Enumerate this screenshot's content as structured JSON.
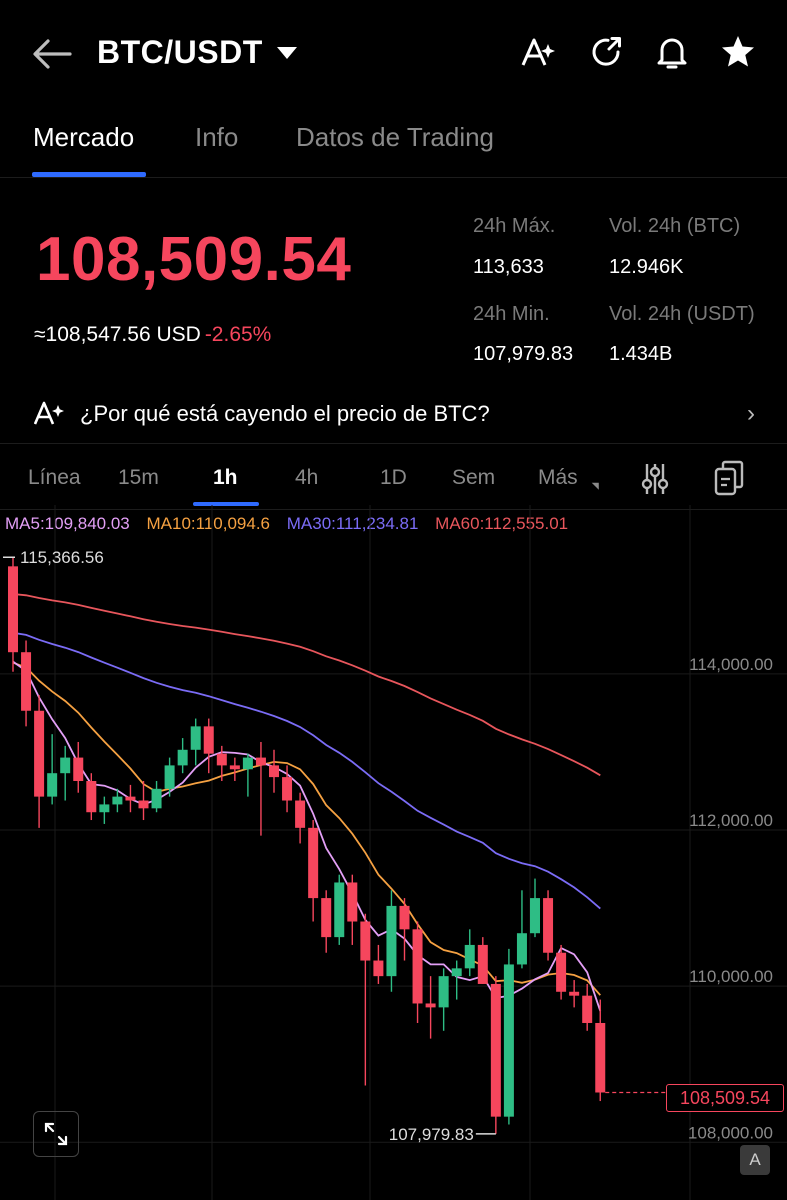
{
  "header": {
    "pair": "BTC/USDT",
    "icons": [
      "back-arrow-icon",
      "ai-icon",
      "share-icon",
      "bell-icon",
      "star-icon"
    ]
  },
  "tabs": [
    {
      "label": "Mercado",
      "active": true
    },
    {
      "label": "Info",
      "active": false
    },
    {
      "label": "Datos de Trading",
      "active": false
    }
  ],
  "market": {
    "last_price": "108,509.54",
    "fiat_value": "≈108,547.56 USD",
    "change_pct": "-2.65%",
    "high_label": "24h Máx.",
    "high_value": "113,633",
    "low_label": "24h Min.",
    "low_value": "107,979.83",
    "vol_btc_label": "Vol. 24h (BTC)",
    "vol_btc_value": "12.946K",
    "vol_usdt_label": "Vol. 24h (USDT)",
    "vol_usdt_value": "1.434B"
  },
  "ai_prompt": {
    "text": "¿Por qué está cayendo el precio de BTC?"
  },
  "intervals": [
    {
      "label": "Línea",
      "active": false
    },
    {
      "label": "15m",
      "active": false
    },
    {
      "label": "1h",
      "active": true
    },
    {
      "label": "4h",
      "active": false
    },
    {
      "label": "1D",
      "active": false
    },
    {
      "label": "Sem",
      "active": false
    },
    {
      "label": "Más",
      "active": false
    }
  ],
  "ma_legend": {
    "ma5": "MA5:109,840.03",
    "ma10": "MA10:110,094.6",
    "ma30": "MA30:111,234.81",
    "ma60": "MA60:112,555.01"
  },
  "colors": {
    "up": "#2ebd85",
    "down": "#f6465d",
    "accent": "#2f6bff",
    "ma5": "#e39ff6",
    "ma10": "#f5a142",
    "ma30": "#7b6cf6",
    "ma60": "#e8565c"
  },
  "chart_labels": {
    "high_marker": "115,366.56",
    "low_marker": "107,979.83",
    "last_price_tag": "108,509.54",
    "y_ticks": [
      "114,000.00",
      "112,000.00",
      "110,000.00",
      "108,000.00"
    ],
    "a_button": "A"
  },
  "chart_data": {
    "type": "candlestick",
    "interval": "1h",
    "y_ticks": [
      114000,
      112000,
      110000,
      108000
    ],
    "high": 115366.56,
    "low": 107979.83,
    "last": 108509.54,
    "candles": [
      [
        115250,
        114150,
        115366.56,
        113900
      ],
      [
        114150,
        113400,
        114300,
        113200
      ],
      [
        113400,
        112300,
        113600,
        111900
      ],
      [
        112300,
        112600,
        113100,
        112200
      ],
      [
        112600,
        112800,
        112950,
        112250
      ],
      [
        112800,
        112500,
        113000,
        112350
      ],
      [
        112500,
        112100,
        112600,
        112000
      ],
      [
        112100,
        112200,
        112300,
        111950
      ],
      [
        112200,
        112300,
        112400,
        112100
      ],
      [
        112300,
        112250,
        112450,
        112100
      ],
      [
        112250,
        112150,
        112500,
        112000
      ],
      [
        112150,
        112400,
        112500,
        112100
      ],
      [
        112400,
        112700,
        112800,
        112300
      ],
      [
        112700,
        112900,
        113050,
        112600
      ],
      [
        112900,
        113200,
        113300,
        112700
      ],
      [
        113200,
        112850,
        113300,
        112600
      ],
      [
        112850,
        112700,
        112950,
        112500
      ],
      [
        112700,
        112650,
        112800,
        112500
      ],
      [
        112650,
        112800,
        112850,
        112300
      ],
      [
        112800,
        112700,
        113000,
        111800
      ],
      [
        112700,
        112550,
        112900,
        112350
      ],
      [
        112550,
        112250,
        112700,
        112100
      ],
      [
        112250,
        111900,
        112350,
        111700
      ],
      [
        111900,
        111000,
        112000,
        110700
      ],
      [
        111000,
        110500,
        111100,
        110300
      ],
      [
        110500,
        111200,
        111300,
        110400
      ],
      [
        111200,
        110700,
        111300,
        110400
      ],
      [
        110700,
        110200,
        110800,
        108600
      ],
      [
        110200,
        110000,
        110400,
        109900
      ],
      [
        110000,
        110900,
        111100,
        109800
      ],
      [
        110900,
        110600,
        111000,
        110200
      ],
      [
        110600,
        109650,
        110700,
        109400
      ],
      [
        109650,
        109600,
        110000,
        109200
      ],
      [
        109600,
        110000,
        110100,
        109300
      ],
      [
        110000,
        110100,
        110200,
        109700
      ],
      [
        110100,
        110400,
        110600,
        110000
      ],
      [
        110400,
        109900,
        110500,
        109900
      ],
      [
        109900,
        108200,
        110000,
        107979.83
      ],
      [
        108200,
        110150,
        110350,
        108100
      ],
      [
        110150,
        110550,
        111100,
        110100
      ],
      [
        110550,
        111000,
        111250,
        110500
      ],
      [
        111000,
        110300,
        111100,
        110200
      ],
      [
        110300,
        109800,
        110400,
        109700
      ],
      [
        109800,
        109750,
        109950,
        109600
      ],
      [
        109750,
        109400,
        109900,
        109300
      ],
      [
        109400,
        108509.54,
        109700,
        108400
      ]
    ],
    "moving_averages": [
      {
        "name": "MA5",
        "value": 109840.03
      },
      {
        "name": "MA10",
        "value": 110094.6
      },
      {
        "name": "MA30",
        "value": 111234.81
      },
      {
        "name": "MA60",
        "value": 112555.01
      }
    ]
  }
}
